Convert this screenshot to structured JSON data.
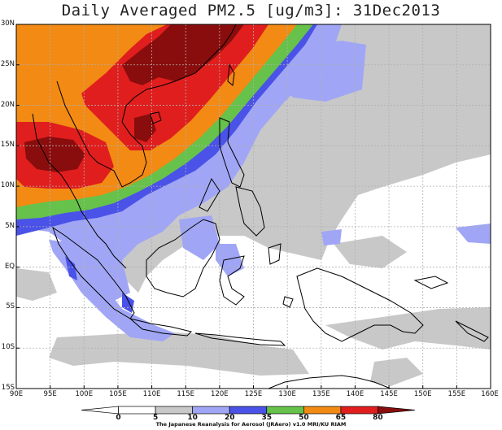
{
  "title": "Daily Averaged PM2.5 [ug/m3]: 31Dec2013",
  "credit": "The Japanese Reanalysis for Aerosol (JRAero) v1.0 MRI/KU RIAM",
  "lat_labels": [
    "30N",
    "25N",
    "20N",
    "15N",
    "10N",
    "5N",
    "EQ",
    "5S",
    "10S",
    "15S"
  ],
  "lon_labels": [
    "90E",
    "95E",
    "100E",
    "105E",
    "110E",
    "115E",
    "120E",
    "125E",
    "130E",
    "135E",
    "140E",
    "145E",
    "150E",
    "155E",
    "160E"
  ],
  "colorbar": {
    "ticks": [
      "0",
      "5",
      "10",
      "20",
      "35",
      "50",
      "65",
      "80"
    ],
    "colors": [
      "#ffffff",
      "#ffffff",
      "#c8c8c8",
      "#a0a6f5",
      "#4a52e8",
      "#66c24a",
      "#f28a14",
      "#e01e1e",
      "#8a0d0d"
    ]
  },
  "colors": {
    "background": "#ffffff",
    "grid": "#b0b0b0",
    "coast": "#000000"
  },
  "map_extent": {
    "lon_min": 90,
    "lon_max": 160,
    "lat_min": -15,
    "lat_max": 30
  }
}
